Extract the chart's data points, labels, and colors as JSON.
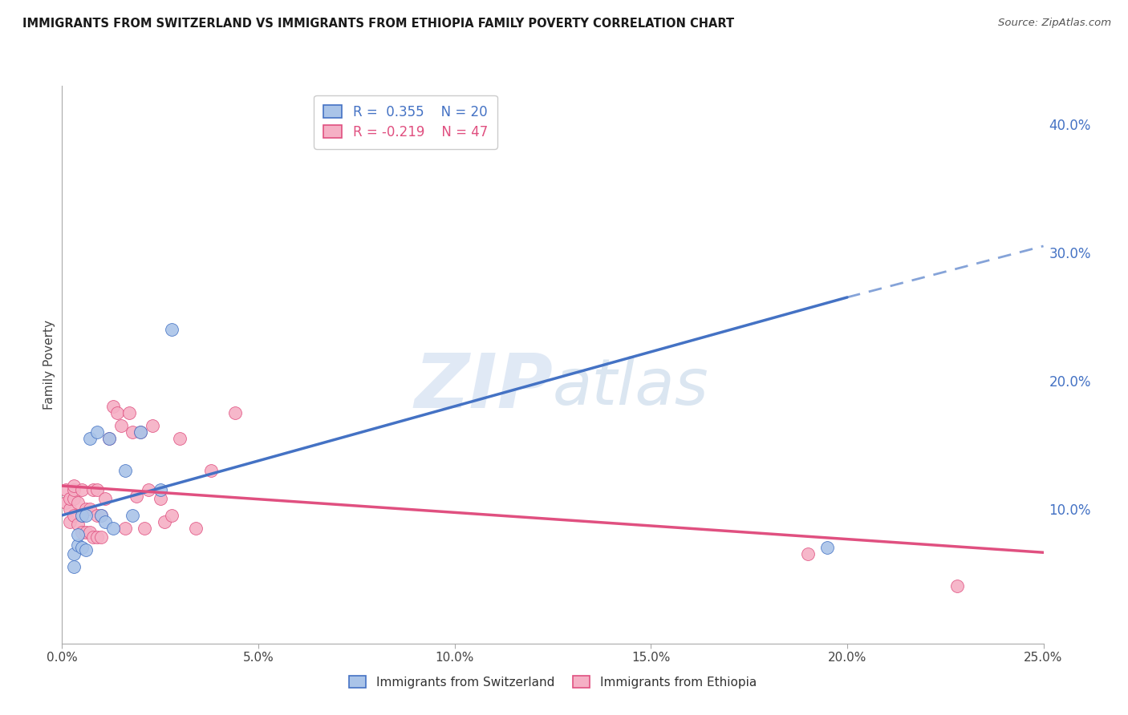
{
  "title": "IMMIGRANTS FROM SWITZERLAND VS IMMIGRANTS FROM ETHIOPIA FAMILY POVERTY CORRELATION CHART",
  "source": "Source: ZipAtlas.com",
  "ylabel": "Family Poverty",
  "right_yticks": [
    0.1,
    0.2,
    0.3,
    0.4
  ],
  "right_yticklabels": [
    "10.0%",
    "20.0%",
    "30.0%",
    "40.0%"
  ],
  "xlim": [
    0.0,
    0.25
  ],
  "ylim": [
    -0.005,
    0.43
  ],
  "xticklabels": [
    "0.0%",
    "5.0%",
    "10.0%",
    "15.0%",
    "20.0%",
    "25.0%"
  ],
  "xticks": [
    0.0,
    0.05,
    0.1,
    0.15,
    0.2,
    0.25
  ],
  "grid_color": "#e0e0e0",
  "background_color": "#ffffff",
  "watermark_zip": "ZIP",
  "watermark_atlas": "atlas",
  "swiss_color": "#aac4e8",
  "swiss_line_color": "#4472c4",
  "ethiopia_color": "#f5b0c5",
  "ethiopia_line_color": "#e05080",
  "legend_label_swiss": "Immigrants from Switzerland",
  "legend_label_ethiopia": "Immigrants from Ethiopia",
  "swiss_line_x0": 0.0,
  "swiss_line_y0": 0.095,
  "swiss_line_x1": 0.2,
  "swiss_line_y1": 0.265,
  "swiss_line_dash_x0": 0.2,
  "swiss_line_dash_y0": 0.265,
  "swiss_line_dash_x1": 0.25,
  "swiss_line_dash_y1": 0.305,
  "eth_line_x0": 0.0,
  "eth_line_y0": 0.118,
  "eth_line_x1": 0.25,
  "eth_line_y1": 0.066,
  "swiss_points_x": [
    0.003,
    0.003,
    0.004,
    0.004,
    0.005,
    0.005,
    0.006,
    0.006,
    0.007,
    0.009,
    0.01,
    0.011,
    0.012,
    0.013,
    0.016,
    0.018,
    0.02,
    0.025,
    0.028,
    0.195
  ],
  "swiss_points_y": [
    0.065,
    0.055,
    0.072,
    0.08,
    0.07,
    0.095,
    0.068,
    0.095,
    0.155,
    0.16,
    0.095,
    0.09,
    0.155,
    0.085,
    0.13,
    0.095,
    0.16,
    0.115,
    0.24,
    0.07
  ],
  "ethiopia_points_x": [
    0.001,
    0.001,
    0.002,
    0.002,
    0.002,
    0.003,
    0.003,
    0.003,
    0.003,
    0.004,
    0.004,
    0.005,
    0.005,
    0.005,
    0.006,
    0.006,
    0.007,
    0.007,
    0.008,
    0.008,
    0.009,
    0.009,
    0.009,
    0.01,
    0.01,
    0.011,
    0.012,
    0.013,
    0.014,
    0.015,
    0.016,
    0.017,
    0.018,
    0.019,
    0.02,
    0.021,
    0.022,
    0.023,
    0.025,
    0.026,
    0.028,
    0.03,
    0.034,
    0.038,
    0.044,
    0.19,
    0.228
  ],
  "ethiopia_points_y": [
    0.105,
    0.115,
    0.09,
    0.1,
    0.108,
    0.095,
    0.108,
    0.115,
    0.118,
    0.088,
    0.105,
    0.082,
    0.095,
    0.115,
    0.082,
    0.1,
    0.082,
    0.1,
    0.115,
    0.078,
    0.095,
    0.115,
    0.078,
    0.095,
    0.078,
    0.108,
    0.155,
    0.18,
    0.175,
    0.165,
    0.085,
    0.175,
    0.16,
    0.11,
    0.16,
    0.085,
    0.115,
    0.165,
    0.108,
    0.09,
    0.095,
    0.155,
    0.085,
    0.13,
    0.175,
    0.065,
    0.04
  ]
}
